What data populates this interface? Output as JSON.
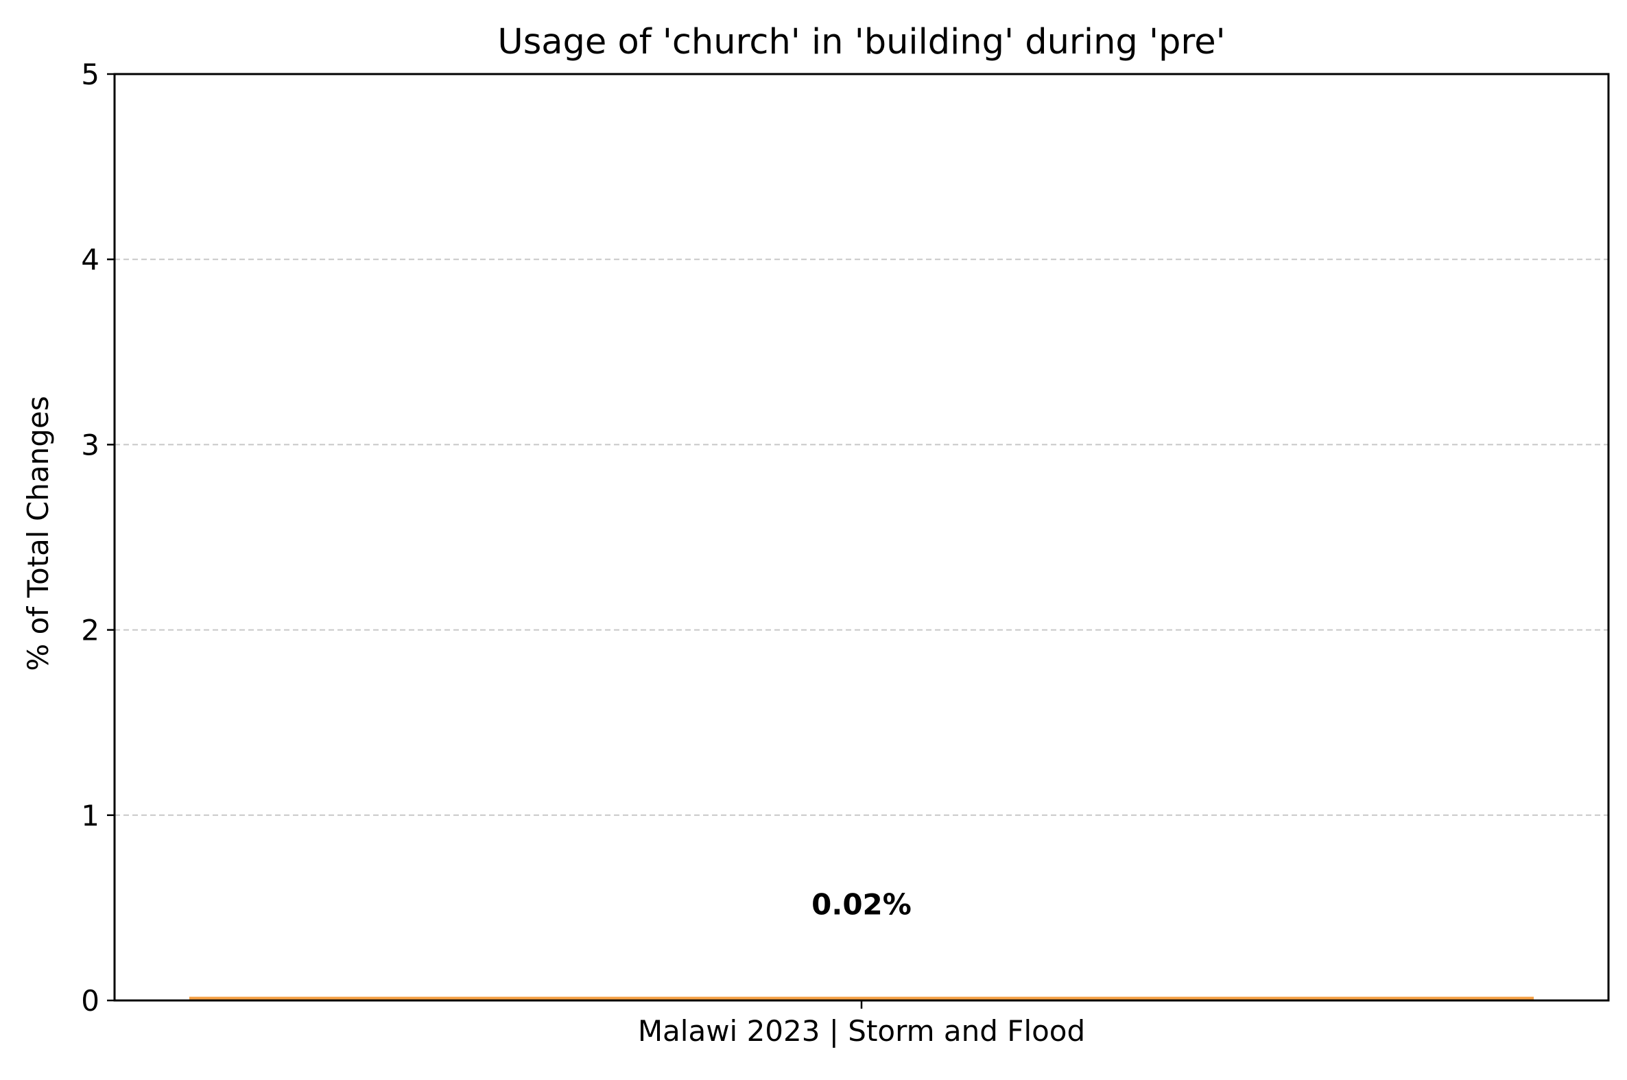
{
  "chart_data": {
    "type": "bar",
    "title": "Usage of 'church' in 'building' during 'pre'",
    "xlabel": "",
    "ylabel": "% of Total Changes",
    "categories": [
      "Malawi 2023 | Storm and Flood"
    ],
    "values": [
      0.02
    ],
    "data_labels": [
      "0.02%"
    ],
    "ylim": [
      0,
      5
    ],
    "yticks": [
      0,
      1,
      2,
      3,
      4,
      5
    ],
    "ytick_labels": [
      "0",
      "1",
      "2",
      "3",
      "4",
      "5"
    ],
    "grid": "y-dashed",
    "legend": "none",
    "colors": {
      "bar": "#f5a045",
      "grid": "#c8c8c8",
      "axis": "#000000"
    }
  }
}
